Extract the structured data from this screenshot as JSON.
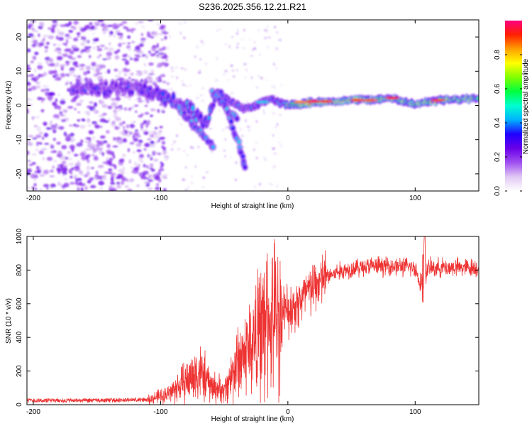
{
  "title": "S236.2025.356.12.21.R21",
  "chart_data": [
    {
      "type": "heatmap",
      "name": "spectrogram",
      "xlabel": "Height of straight line (km)",
      "ylabel": "Frequency (Hz)",
      "xlim": [
        -205,
        150
      ],
      "ylim": [
        -25,
        25
      ],
      "xticks": [
        -200,
        -100,
        0,
        100
      ],
      "xtick_labels": [
        "-200",
        "-100",
        "0",
        "100"
      ],
      "yticks": [
        -20,
        -10,
        0,
        10,
        20
      ],
      "ytick_labels": [
        "-20",
        "-10",
        "0",
        "10",
        "20"
      ],
      "colorbar": {
        "label": "Normalized spectral amplitude",
        "range": [
          0,
          1
        ],
        "ticks": [
          0,
          0.2,
          0.4,
          0.6,
          0.8
        ],
        "tick_labels": [
          "0.0",
          "0.2",
          "0.4",
          "0.6",
          "0.8"
        ],
        "colors": [
          "#ffffff",
          "#e0c8f4",
          "#a050f0",
          "#6a00e8",
          "#2000ff",
          "#00b0ff",
          "#00ffd0",
          "#00ff40",
          "#80ff00",
          "#ffff00",
          "#ffa000",
          "#ff2000",
          "#ff0080"
        ]
      },
      "ridge": {
        "description_points_x": [
          -150,
          -120,
          -100,
          -80,
          -65,
          -55,
          -45,
          -35,
          -25,
          -15,
          0,
          20,
          50,
          80,
          100,
          120,
          150
        ],
        "frequency": [
          5,
          5,
          3,
          0,
          -6,
          4,
          1,
          -1,
          0,
          2,
          0,
          1,
          1.5,
          2,
          0.5,
          1.5,
          2
        ]
      }
    },
    {
      "type": "line",
      "name": "snr",
      "xlabel": "Height of straight line (km)",
      "ylabel": "SNR (10 * v/v)",
      "xlim": [
        -205,
        150
      ],
      "ylim": [
        0,
        1000
      ],
      "xticks": [
        -200,
        -100,
        0,
        100
      ],
      "xtick_labels": [
        "-200",
        "-100",
        "0",
        "100"
      ],
      "yticks": [
        0,
        200,
        400,
        600,
        800,
        1000
      ],
      "ytick_labels": [
        "0",
        "200",
        "400",
        "600",
        "800",
        "1000"
      ],
      "color": "#ee3333",
      "envelope_x": [
        -205,
        -150,
        -110,
        -95,
        -80,
        -70,
        -60,
        -50,
        -40,
        -30,
        -20,
        -10,
        0,
        10,
        20,
        30,
        40,
        50,
        60,
        80,
        100,
        105,
        108,
        110,
        120,
        150
      ],
      "envelope_y": [
        25,
        25,
        30,
        60,
        140,
        200,
        110,
        80,
        250,
        350,
        450,
        520,
        560,
        620,
        700,
        760,
        790,
        810,
        820,
        825,
        815,
        700,
        760,
        810,
        815,
        815
      ]
    }
  ]
}
